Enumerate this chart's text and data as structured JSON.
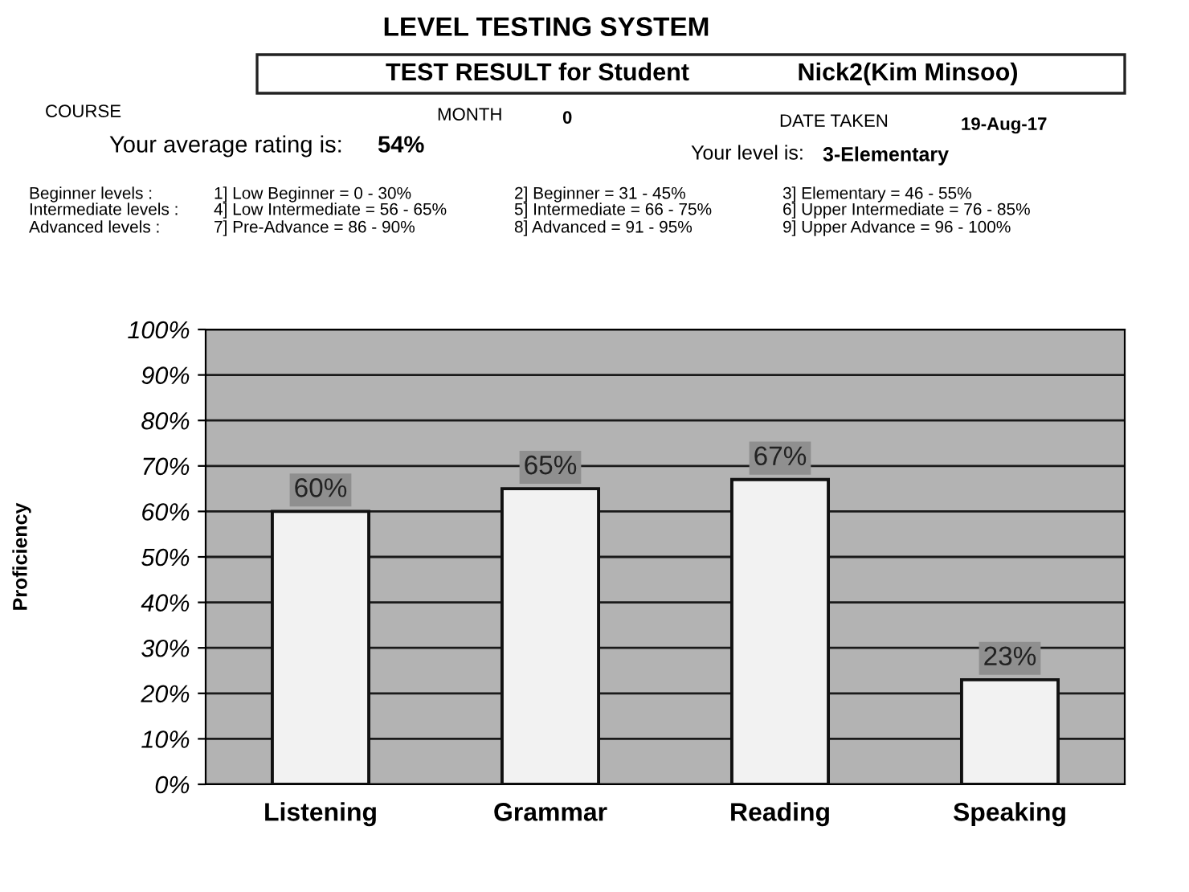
{
  "chart_data": {
    "type": "bar",
    "title": "LEVEL TESTING SYSTEM",
    "subtitle": "TEST RESULT for Student",
    "ylabel": "Proficiency",
    "categories": [
      "Listening",
      "Grammar",
      "Reading",
      "Speaking"
    ],
    "values": [
      60,
      65,
      67,
      23
    ],
    "value_labels": [
      "60%",
      "65%",
      "67%",
      "23%"
    ],
    "color": "#f2f2f2",
    "ylim": [
      0,
      100
    ],
    "yticks": [
      {
        "value": 0,
        "label": "0%"
      },
      {
        "value": 10,
        "label": "10%"
      },
      {
        "value": 20,
        "label": "20%"
      },
      {
        "value": 30,
        "label": "30%"
      },
      {
        "value": 40,
        "label": "40%"
      },
      {
        "value": 50,
        "label": "50%"
      },
      {
        "value": 60,
        "label": "60%"
      },
      {
        "value": 70,
        "label": "70%"
      },
      {
        "value": 80,
        "label": "80%"
      },
      {
        "value": 90,
        "label": "90%"
      },
      {
        "value": 100,
        "label": "100%"
      }
    ],
    "grid": "y",
    "annotations": [
      "Nick2(Kim Minsoo)",
      "COURSE",
      "MONTH",
      "0",
      "DATE TAKEN",
      "19-Aug-17",
      "Your average rating is:",
      "54%",
      "Your level is:",
      "3-Elementary",
      "Beginner levels :",
      "1] Low Beginner = 0 - 30%",
      "2] Beginner = 31 - 45%",
      "3] Elementary = 46 - 55%",
      "Intermediate levels :",
      "4] Low Intermediate = 56 - 65%",
      "5] Intermediate = 66 - 75%",
      "6] Upper Intermediate = 76 - 85%",
      "Advanced levels :",
      "7] Pre-Advance = 86 - 90%",
      "8] Advanced = 91 - 95%",
      "9] Upper Advance = 96 - 100%"
    ]
  }
}
